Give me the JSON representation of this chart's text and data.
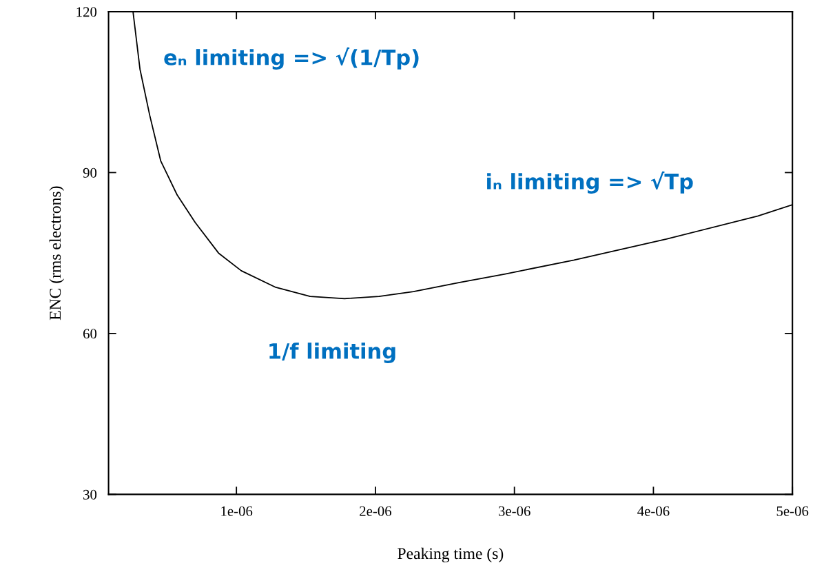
{
  "chart_data": {
    "type": "line",
    "xlabel": "Peaking time (s)",
    "ylabel": "ENC (rms electrons)",
    "x": [
      2.56e-07,
      3.06e-07,
      3.76e-07,
      4.55e-07,
      5.74e-07,
      7.03e-07,
      8.71e-07,
      1.035e-06,
      1.283e-06,
      1.53e-06,
      1.778e-06,
      2.026e-06,
      2.274e-06,
      2.606e-06,
      2.934e-06,
      3.429e-06,
      4.094e-06,
      4.753e-06,
      5e-06
    ],
    "series": [
      {
        "color": "#000000",
        "values": [
          120,
          109.3,
          100.7,
          92.2,
          85.8,
          80.7,
          75.0,
          71.7,
          68.6,
          66.9,
          66.5,
          66.9,
          67.8,
          69.5,
          71.1,
          73.7,
          77.6,
          81.9,
          84.0
        ]
      }
    ],
    "xlim": [
      8e-08,
      5e-06
    ],
    "xticks": [
      1e-06,
      2e-06,
      3e-06,
      4e-06,
      5e-06
    ],
    "ylim": [
      30,
      120
    ],
    "yticks": [
      30,
      60,
      90,
      120
    ],
    "grid": false,
    "marker": "none",
    "line_style": "solid",
    "annotations": [
      "eₙ limiting => √(1/Tp)",
      "iₙ limiting => √Tp",
      "1/f limiting"
    ]
  }
}
